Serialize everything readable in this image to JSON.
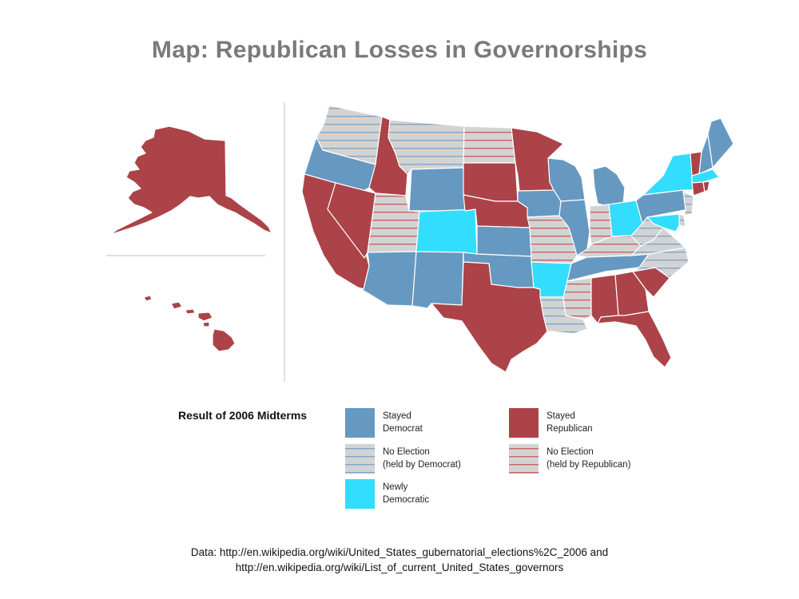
{
  "title": "Map: Republican Losses in Governorships",
  "colors": {
    "stayed_democrat": "#6699c1",
    "stayed_republican": "#ab4348",
    "newly_democratic": "#33ddfd",
    "no_election_bg": "#d3d3d3",
    "no_election_dem_stripe": "#7ea8cc",
    "no_election_rep_stripe": "#c66468",
    "border": "#ffffff",
    "divider": "#cccccc"
  },
  "map": {
    "states": [
      {
        "code": "AK",
        "status": "stayed_republican"
      },
      {
        "code": "HI",
        "status": "stayed_republican"
      },
      {
        "code": "WA",
        "status": "no_election_democrat"
      },
      {
        "code": "OR",
        "status": "stayed_democrat"
      },
      {
        "code": "CA",
        "status": "stayed_republican"
      },
      {
        "code": "NV",
        "status": "stayed_republican"
      },
      {
        "code": "ID",
        "status": "stayed_republican"
      },
      {
        "code": "MT",
        "status": "no_election_democrat"
      },
      {
        "code": "WY",
        "status": "stayed_democrat"
      },
      {
        "code": "UT",
        "status": "no_election_republican"
      },
      {
        "code": "CO",
        "status": "newly_democratic"
      },
      {
        "code": "AZ",
        "status": "stayed_democrat"
      },
      {
        "code": "NM",
        "status": "stayed_democrat"
      },
      {
        "code": "ND",
        "status": "no_election_republican"
      },
      {
        "code": "SD",
        "status": "stayed_republican"
      },
      {
        "code": "NE",
        "status": "stayed_republican"
      },
      {
        "code": "KS",
        "status": "stayed_democrat"
      },
      {
        "code": "OK",
        "status": "stayed_democrat"
      },
      {
        "code": "TX",
        "status": "stayed_republican"
      },
      {
        "code": "MN",
        "status": "stayed_republican"
      },
      {
        "code": "IA",
        "status": "stayed_democrat"
      },
      {
        "code": "MO",
        "status": "no_election_republican"
      },
      {
        "code": "AR",
        "status": "newly_democratic"
      },
      {
        "code": "LA",
        "status": "no_election_democrat"
      },
      {
        "code": "WI",
        "status": "stayed_democrat"
      },
      {
        "code": "IL",
        "status": "stayed_democrat"
      },
      {
        "code": "MI",
        "status": "stayed_democrat"
      },
      {
        "code": "IN",
        "status": "no_election_republican"
      },
      {
        "code": "OH",
        "status": "newly_democratic"
      },
      {
        "code": "KY",
        "status": "no_election_republican"
      },
      {
        "code": "TN",
        "status": "stayed_democrat"
      },
      {
        "code": "MS",
        "status": "no_election_republican"
      },
      {
        "code": "AL",
        "status": "stayed_republican"
      },
      {
        "code": "GA",
        "status": "stayed_republican"
      },
      {
        "code": "FL",
        "status": "stayed_republican"
      },
      {
        "code": "SC",
        "status": "stayed_republican"
      },
      {
        "code": "NC",
        "status": "no_election_democrat"
      },
      {
        "code": "VA",
        "status": "no_election_democrat"
      },
      {
        "code": "WV",
        "status": "no_election_democrat"
      },
      {
        "code": "PA",
        "status": "stayed_democrat"
      },
      {
        "code": "NY",
        "status": "newly_democratic"
      },
      {
        "code": "VT",
        "status": "stayed_republican"
      },
      {
        "code": "NH",
        "status": "stayed_democrat"
      },
      {
        "code": "ME",
        "status": "stayed_democrat"
      },
      {
        "code": "MA",
        "status": "newly_democratic"
      },
      {
        "code": "CT",
        "status": "stayed_republican"
      },
      {
        "code": "RI",
        "status": "stayed_republican"
      },
      {
        "code": "NJ",
        "status": "no_election_democrat"
      },
      {
        "code": "DE",
        "status": "no_election_democrat"
      },
      {
        "code": "MD",
        "status": "newly_democratic"
      }
    ]
  },
  "legend": {
    "title": "Result of 2006 Midterms",
    "items": {
      "stayed_democrat": [
        "Stayed",
        "Democrat"
      ],
      "stayed_republican": [
        "Stayed",
        "Republican"
      ],
      "no_election_democrat": [
        "No Election",
        "(held by Democrat)"
      ],
      "no_election_republican": [
        "No Election",
        "(held by Republican)"
      ],
      "newly_democratic": [
        "Newly",
        "Democratic"
      ]
    }
  },
  "footnote": {
    "line1": "Data: http://en.wikipedia.org/wiki/United_States_gubernatorial_elections%2C_2006 and",
    "line2": "http://en.wikipedia.org/wiki/List_of_current_United_States_governors"
  }
}
